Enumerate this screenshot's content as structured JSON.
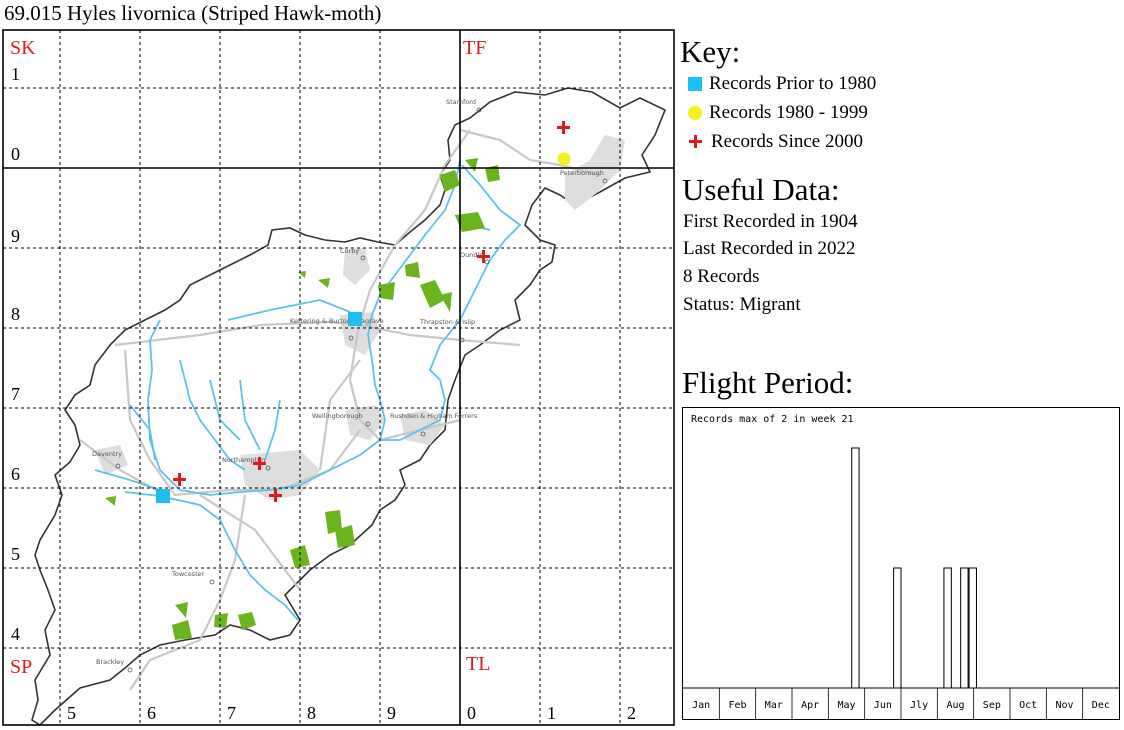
{
  "title": "69.015 Hyles livornica (Striped Hawk-moth)",
  "map": {
    "square_labels": [
      "SK",
      "TF",
      "SP",
      "TL"
    ],
    "northing_labels": [
      "1",
      "0",
      "9",
      "8",
      "7",
      "6",
      "5",
      "4"
    ],
    "easting_labels": [
      "5",
      "6",
      "7",
      "8",
      "9",
      "0",
      "1",
      "2"
    ],
    "towns": [
      "Stamford",
      "Peterborough",
      "Corby",
      "Oundle",
      "Kettering & Burton Seagrave",
      "Thrapston & Islip",
      "Wellingborough",
      "Rushden & Higham Ferrers",
      "Daventry",
      "Northampton",
      "Towcester",
      "Brackley"
    ],
    "colors": {
      "prior_1980": "#1ec0f0",
      "y1980_1999": "#f6ef1e",
      "since_2000": "#e01a1a",
      "rivers": "#5bc3eb",
      "woodland": "#6ab41d",
      "urban": "#d9d9d9",
      "roads": "#c8c8c8"
    }
  },
  "key": {
    "title": "Key:",
    "items": [
      {
        "label": "Records Prior to 1980",
        "symbol": "blue-square"
      },
      {
        "label": "Records 1980 - 1999",
        "symbol": "yellow-circle"
      },
      {
        "label": "Records Since 2000",
        "symbol": "red-plus"
      }
    ]
  },
  "useful_data": {
    "title": "Useful Data:",
    "first_recorded": "First Recorded in 1904",
    "last_recorded": "Last Recorded in 2022",
    "records": "8 Records",
    "status": "Status: Migrant"
  },
  "flight_period": {
    "title": "Flight Period:",
    "caption": "Records max of 2 in week 21"
  },
  "chart_data": {
    "type": "bar",
    "title": "Flight Period:",
    "subtitle": "Records max of 2 in week 21",
    "xlabel": "",
    "ylabel": "",
    "x_unit": "week",
    "categories": [
      "Jan",
      "Feb",
      "Mar",
      "Apr",
      "May",
      "Jun",
      "Jly",
      "Aug",
      "Sep",
      "Oct",
      "Nov",
      "Dec"
    ],
    "weeks_total": 52,
    "series": [
      {
        "values": [
          {
            "week": 21,
            "count": 2
          },
          {
            "week": 26,
            "count": 1
          },
          {
            "week": 32,
            "count": 1
          },
          {
            "week": 34,
            "count": 1
          },
          {
            "week": 35,
            "count": 1
          }
        ]
      }
    ],
    "ylim": [
      0,
      2
    ],
    "grid": false
  }
}
